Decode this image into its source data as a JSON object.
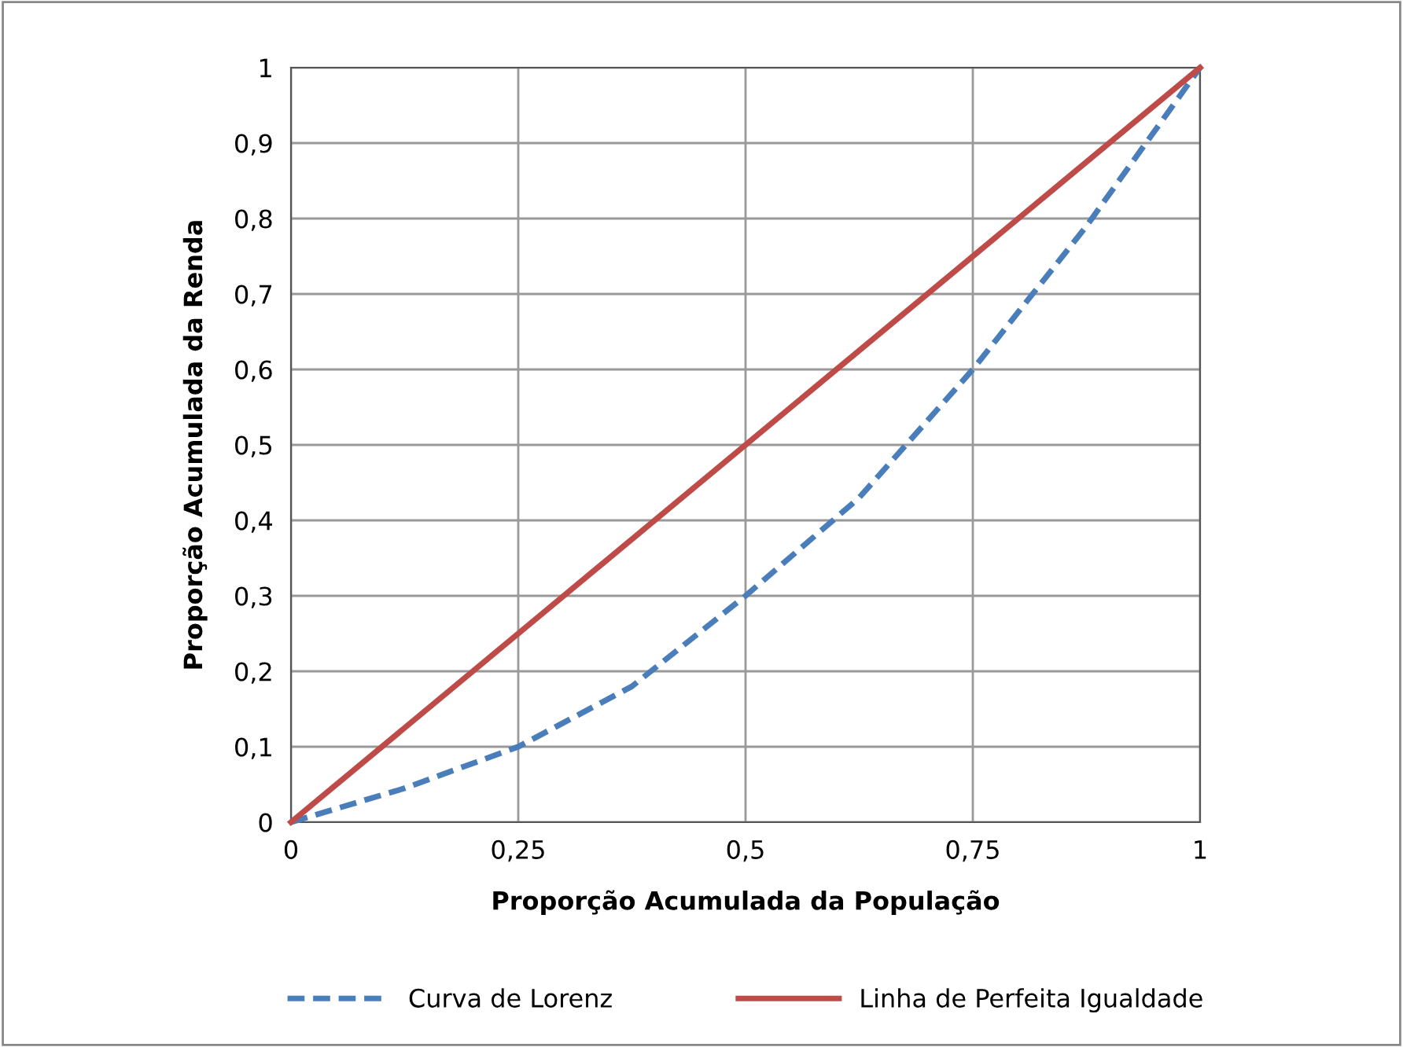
{
  "chart_data": {
    "type": "line",
    "xlabel": "Proporção Acumulada da População",
    "ylabel": "Proporção Acumulada da Renda",
    "xlim": [
      0,
      1
    ],
    "ylim": [
      0,
      1
    ],
    "xticks": [
      0,
      {
        "value": 0.25,
        "label": "0,25"
      },
      {
        "value": 0.5,
        "label": "0,5"
      },
      {
        "value": 0.75,
        "label": "0,75"
      },
      1
    ],
    "yticks": [
      0,
      {
        "value": 0.1,
        "label": "0,1"
      },
      {
        "value": 0.2,
        "label": "0,2"
      },
      {
        "value": 0.3,
        "label": "0,3"
      },
      {
        "value": 0.4,
        "label": "0,4"
      },
      {
        "value": 0.5,
        "label": "0,5"
      },
      {
        "value": 0.6,
        "label": "0,6"
      },
      {
        "value": 0.7,
        "label": "0,7"
      },
      {
        "value": 0.8,
        "label": "0,8"
      },
      {
        "value": 0.9,
        "label": "0,9"
      },
      1
    ],
    "grid": true,
    "legend": "bottom",
    "marker": "none",
    "series": [
      {
        "name": "Curva de Lorenz",
        "color": "#4a7ebb",
        "line_style": "dashed",
        "x": [
          0,
          0.125,
          0.25,
          0.375,
          0.5,
          0.625,
          0.75,
          0.875,
          1
        ],
        "values": [
          0,
          0.045,
          0.1,
          0.18,
          0.3,
          0.43,
          0.6,
          0.79,
          1
        ]
      },
      {
        "name": "Linha de Perfeita Igualdade",
        "color": "#be4b48",
        "line_style": "solid",
        "x": [
          0,
          1
        ],
        "values": [
          0,
          1
        ]
      }
    ]
  }
}
